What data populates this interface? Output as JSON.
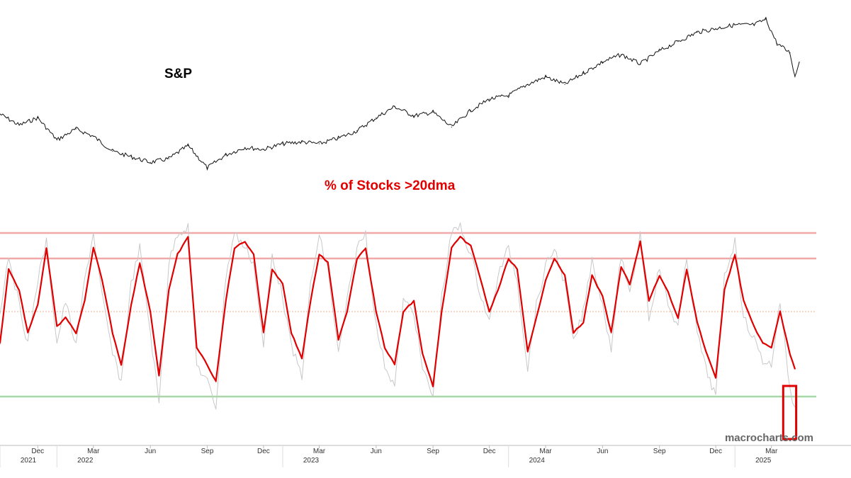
{
  "chart_data": [
    {
      "type": "line",
      "title": "S&P",
      "series": [
        {
          "color": "#111111",
          "x": [
            "2021-10-01",
            "2021-11-01",
            "2021-12-01",
            "2022-01-01",
            "2022-02-01",
            "2022-03-01",
            "2022-04-01",
            "2022-05-01",
            "2022-06-01",
            "2022-07-01",
            "2022-08-01",
            "2022-09-01",
            "2022-10-01",
            "2022-11-01",
            "2022-12-01",
            "2023-01-01",
            "2023-02-01",
            "2023-03-01",
            "2023-04-01",
            "2023-05-01",
            "2023-06-01",
            "2023-07-01",
            "2023-08-01",
            "2023-09-01",
            "2023-10-01",
            "2023-11-01",
            "2023-12-01",
            "2024-01-01",
            "2024-02-01",
            "2024-03-01",
            "2024-04-01",
            "2024-05-01",
            "2024-06-01",
            "2024-07-01",
            "2024-08-01",
            "2024-09-01",
            "2024-10-01",
            "2024-11-01",
            "2024-12-01",
            "2025-01-01",
            "2025-02-01",
            "2025-02-20",
            "2025-03-10",
            "2025-03-31",
            "2025-04-08",
            "2025-04-15"
          ],
          "values": [
            72,
            66,
            70,
            58,
            64,
            60,
            52,
            49,
            46,
            48,
            55,
            43,
            50,
            54,
            53,
            56,
            57,
            56,
            59,
            63,
            70,
            76,
            71,
            73,
            65,
            74,
            80,
            82,
            88,
            92,
            88,
            94,
            100,
            104,
            99,
            106,
            111,
            116,
            118,
            120,
            120,
            123,
            110,
            105,
            92,
            100
          ]
        }
      ]
    },
    {
      "type": "line",
      "title": "% of Stocks >20dma",
      "ylim": [
        0,
        100
      ],
      "reference_lines": [
        {
          "value": 92,
          "color": "#f0a8a8"
        },
        {
          "value": 80,
          "color": "#f0a8a8"
        },
        {
          "value": 55,
          "color": "#f4b090",
          "style": "dotted"
        },
        {
          "value": 15,
          "color": "#a8d8a8"
        }
      ],
      "series": [
        {
          "color": "#e00000",
          "x": [
            "2021-10-01",
            "2021-10-15",
            "2021-11-01",
            "2021-11-15",
            "2021-12-01",
            "2021-12-15",
            "2022-01-01",
            "2022-01-15",
            "2022-02-01",
            "2022-02-15",
            "2022-03-01",
            "2022-03-15",
            "2022-04-01",
            "2022-04-15",
            "2022-05-01",
            "2022-05-15",
            "2022-06-01",
            "2022-06-15",
            "2022-07-01",
            "2022-07-15",
            "2022-08-01",
            "2022-08-15",
            "2022-09-01",
            "2022-09-15",
            "2022-10-01",
            "2022-10-15",
            "2022-11-01",
            "2022-11-15",
            "2022-12-01",
            "2022-12-15",
            "2023-01-01",
            "2023-01-15",
            "2023-02-01",
            "2023-02-15",
            "2023-03-01",
            "2023-03-15",
            "2023-04-01",
            "2023-04-15",
            "2023-05-01",
            "2023-05-15",
            "2023-06-01",
            "2023-06-15",
            "2023-07-01",
            "2023-07-15",
            "2023-08-01",
            "2023-08-15",
            "2023-09-01",
            "2023-09-15",
            "2023-10-01",
            "2023-10-15",
            "2023-11-01",
            "2023-11-15",
            "2023-12-01",
            "2023-12-15",
            "2024-01-01",
            "2024-01-15",
            "2024-02-01",
            "2024-02-15",
            "2024-03-01",
            "2024-03-15",
            "2024-04-01",
            "2024-04-15",
            "2024-05-01",
            "2024-05-15",
            "2024-06-01",
            "2024-06-15",
            "2024-07-01",
            "2024-07-15",
            "2024-08-01",
            "2024-08-15",
            "2024-09-01",
            "2024-09-15",
            "2024-10-01",
            "2024-10-15",
            "2024-11-01",
            "2024-11-15",
            "2024-12-01",
            "2024-12-15",
            "2025-01-01",
            "2025-01-15",
            "2025-02-01",
            "2025-02-15",
            "2025-03-01",
            "2025-03-15",
            "2025-03-31",
            "2025-04-08"
          ],
          "values": [
            40,
            75,
            65,
            45,
            58,
            85,
            48,
            52,
            45,
            60,
            85,
            70,
            45,
            30,
            58,
            78,
            55,
            25,
            65,
            82,
            90,
            38,
            30,
            22,
            60,
            85,
            88,
            82,
            45,
            75,
            68,
            45,
            33,
            60,
            82,
            78,
            42,
            55,
            80,
            85,
            55,
            38,
            30,
            55,
            60,
            35,
            20,
            55,
            85,
            90,
            86,
            72,
            55,
            65,
            80,
            75,
            36,
            52,
            70,
            80,
            72,
            45,
            50,
            72,
            62,
            45,
            76,
            68,
            88,
            60,
            72,
            64,
            52,
            75,
            50,
            36,
            24,
            65,
            82,
            60,
            48,
            40,
            38,
            55,
            35,
            28
          ]
        },
        {
          "color": "#c8c8c8",
          "x": [
            "2021-10-01",
            "2021-10-15",
            "2021-11-01",
            "2021-11-15",
            "2021-12-01",
            "2021-12-15",
            "2022-01-01",
            "2022-01-15",
            "2022-02-01",
            "2022-02-15",
            "2022-03-01",
            "2022-03-15",
            "2022-04-01",
            "2022-04-15",
            "2022-05-01",
            "2022-05-15",
            "2022-06-01",
            "2022-06-15",
            "2022-07-01",
            "2022-07-15",
            "2022-08-01",
            "2022-08-15",
            "2022-09-01",
            "2022-09-15",
            "2022-10-01",
            "2022-10-15",
            "2022-11-01",
            "2022-11-15",
            "2022-12-01",
            "2022-12-15",
            "2023-01-01",
            "2023-01-15",
            "2023-02-01",
            "2023-02-15",
            "2023-03-01",
            "2023-03-15",
            "2023-04-01",
            "2023-04-15",
            "2023-05-01",
            "2023-05-15",
            "2023-06-01",
            "2023-06-15",
            "2023-07-01",
            "2023-07-15",
            "2023-08-01",
            "2023-08-15",
            "2023-09-01",
            "2023-09-15",
            "2023-10-01",
            "2023-10-15",
            "2023-11-01",
            "2023-11-15",
            "2023-12-01",
            "2023-12-15",
            "2024-01-01",
            "2024-01-15",
            "2024-02-01",
            "2024-02-15",
            "2024-03-01",
            "2024-03-15",
            "2024-04-01",
            "2024-04-15",
            "2024-05-01",
            "2024-05-15",
            "2024-06-01",
            "2024-06-15",
            "2024-07-01",
            "2024-07-15",
            "2024-08-01",
            "2024-08-15",
            "2024-09-01",
            "2024-09-15",
            "2024-10-01",
            "2024-10-15",
            "2024-11-01",
            "2024-11-15",
            "2024-12-01",
            "2024-12-15",
            "2025-01-01",
            "2025-01-15",
            "2025-02-01",
            "2025-02-15",
            "2025-03-01",
            "2025-03-15",
            "2025-03-31",
            "2025-04-08"
          ],
          "values": [
            55,
            82,
            58,
            40,
            70,
            88,
            40,
            60,
            38,
            70,
            92,
            62,
            35,
            22,
            68,
            85,
            45,
            12,
            78,
            92,
            95,
            30,
            22,
            10,
            72,
            92,
            85,
            78,
            38,
            82,
            62,
            38,
            25,
            68,
            90,
            75,
            35,
            60,
            85,
            92,
            48,
            30,
            20,
            60,
            55,
            28,
            15,
            62,
            92,
            95,
            82,
            65,
            50,
            72,
            85,
            70,
            28,
            58,
            76,
            85,
            68,
            40,
            55,
            80,
            58,
            38,
            82,
            62,
            92,
            52,
            76,
            58,
            48,
            80,
            45,
            28,
            15,
            72,
            88,
            52,
            42,
            32,
            30,
            60,
            18,
            10
          ]
        }
      ]
    }
  ],
  "x_axis": {
    "months": [
      {
        "label": "Dec",
        "date": "2021-12-01"
      },
      {
        "label": "Mar",
        "date": "2022-03-01"
      },
      {
        "label": "Jun",
        "date": "2022-06-01"
      },
      {
        "label": "Sep",
        "date": "2022-09-01"
      },
      {
        "label": "Dec",
        "date": "2022-12-01"
      },
      {
        "label": "Mar",
        "date": "2023-03-01"
      },
      {
        "label": "Jun",
        "date": "2023-06-01"
      },
      {
        "label": "Sep",
        "date": "2023-09-01"
      },
      {
        "label": "Dec",
        "date": "2023-12-01"
      },
      {
        "label": "Mar",
        "date": "2024-03-01"
      },
      {
        "label": "Jun",
        "date": "2024-06-01"
      },
      {
        "label": "Sep",
        "date": "2024-09-01"
      },
      {
        "label": "Dec",
        "date": "2024-12-01"
      },
      {
        "label": "Mar",
        "date": "2025-03-01"
      }
    ],
    "years": [
      {
        "label": "2021",
        "date": "2021-10-01"
      },
      {
        "label": "2022",
        "date": "2022-01-01"
      },
      {
        "label": "2023",
        "date": "2023-01-01"
      },
      {
        "label": "2024",
        "date": "2024-01-01"
      },
      {
        "label": "2025",
        "date": "2025-01-01"
      }
    ]
  },
  "highlight_box": {
    "start": "2025-03-20",
    "end": "2025-04-10",
    "ymin": -5,
    "ymax": 20,
    "color": "#e00000"
  },
  "watermark": "macrocharts.com"
}
